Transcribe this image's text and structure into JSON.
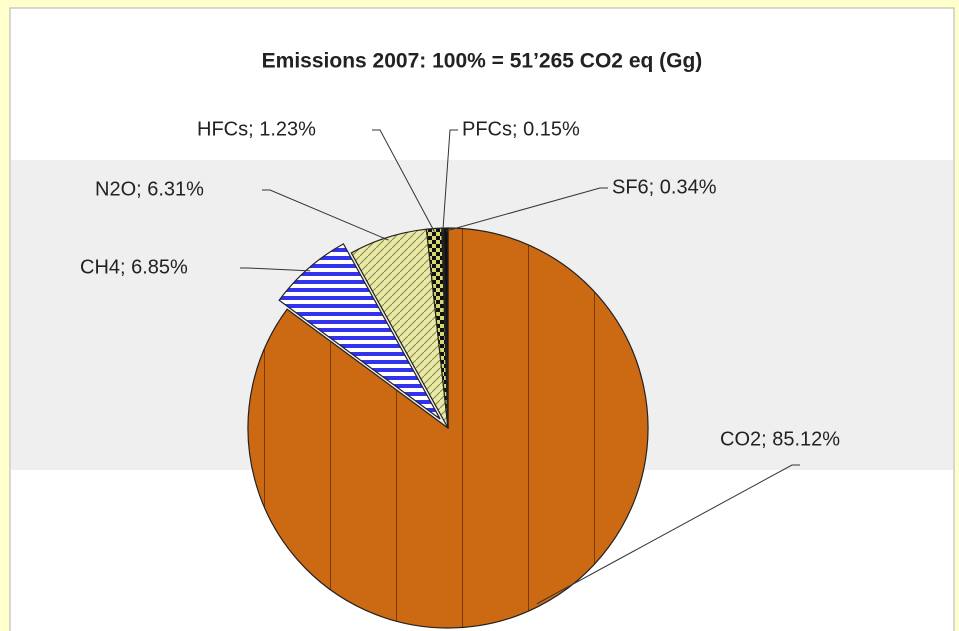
{
  "chart_data": {
    "type": "pie",
    "title": "Emissions 2007: 100% = 51’265 CO2 eq (Gg)",
    "values": [
      85.12,
      6.85,
      6.31,
      1.23,
      0.15,
      0.34
    ],
    "value_labels": [
      "CO2; 85.12%",
      "CH4; 6.85%",
      "N2O; 6.31%",
      "HFCs; 1.23%",
      "PFCs; 0.15%",
      "SF6; 0.34%"
    ],
    "colors": [
      "#cc6a14",
      "#3333ee",
      "#e8e8a8",
      "#d8d870",
      "#222222",
      "#111111"
    ]
  }
}
